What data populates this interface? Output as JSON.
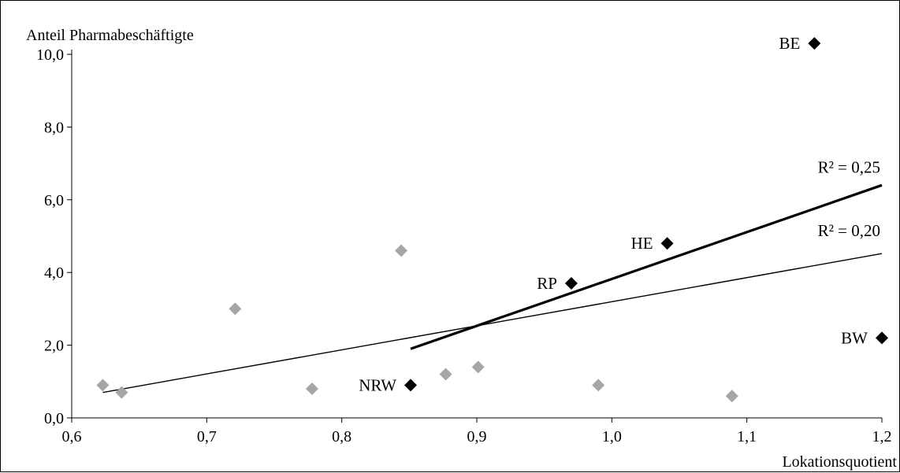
{
  "chart_data": {
    "type": "scatter",
    "title": "",
    "xlabel": "Lokationsquotient",
    "ylabel": "Anteil Pharmabeschäftigte",
    "xlim": [
      0.6,
      1.2
    ],
    "ylim": [
      0.0,
      10.0
    ],
    "x_ticks": [
      "0,6",
      "0,7",
      "0,8",
      "0,9",
      "1,0",
      "1,1",
      "1,2"
    ],
    "y_ticks": [
      "0,0",
      "2,0",
      "4,0",
      "6,0",
      "8,0",
      "10,0"
    ],
    "grid": false,
    "colors": {
      "highlight": "#000000",
      "other": "#a6a6a6"
    },
    "series": [
      {
        "points": [
          {
            "x": 0.623,
            "y": 0.9
          },
          {
            "x": 0.637,
            "y": 0.7
          },
          {
            "x": 0.721,
            "y": 3.0
          },
          {
            "x": 0.778,
            "y": 0.8
          },
          {
            "x": 0.844,
            "y": 4.6
          },
          {
            "x": 0.877,
            "y": 1.2
          },
          {
            "x": 0.901,
            "y": 1.4
          },
          {
            "x": 0.99,
            "y": 0.9
          },
          {
            "x": 1.089,
            "y": 0.6
          }
        ]
      },
      {
        "points": [
          {
            "x": 0.851,
            "y": 0.9,
            "label": "NRW"
          },
          {
            "x": 0.97,
            "y": 3.7,
            "label": "RP"
          },
          {
            "x": 1.041,
            "y": 4.8,
            "label": "HE"
          },
          {
            "x": 1.15,
            "y": 10.3,
            "label": "BE"
          },
          {
            "x": 1.2,
            "y": 2.2,
            "label": "BW"
          }
        ]
      }
    ],
    "trendlines": [
      {
        "label": "R² = 0,20",
        "x": [
          0.623,
          1.2
        ],
        "y": [
          0.7,
          4.52
        ]
      },
      {
        "label": "R² = 0,25",
        "x": [
          0.851,
          1.2
        ],
        "y": [
          1.9,
          6.4
        ]
      }
    ]
  }
}
